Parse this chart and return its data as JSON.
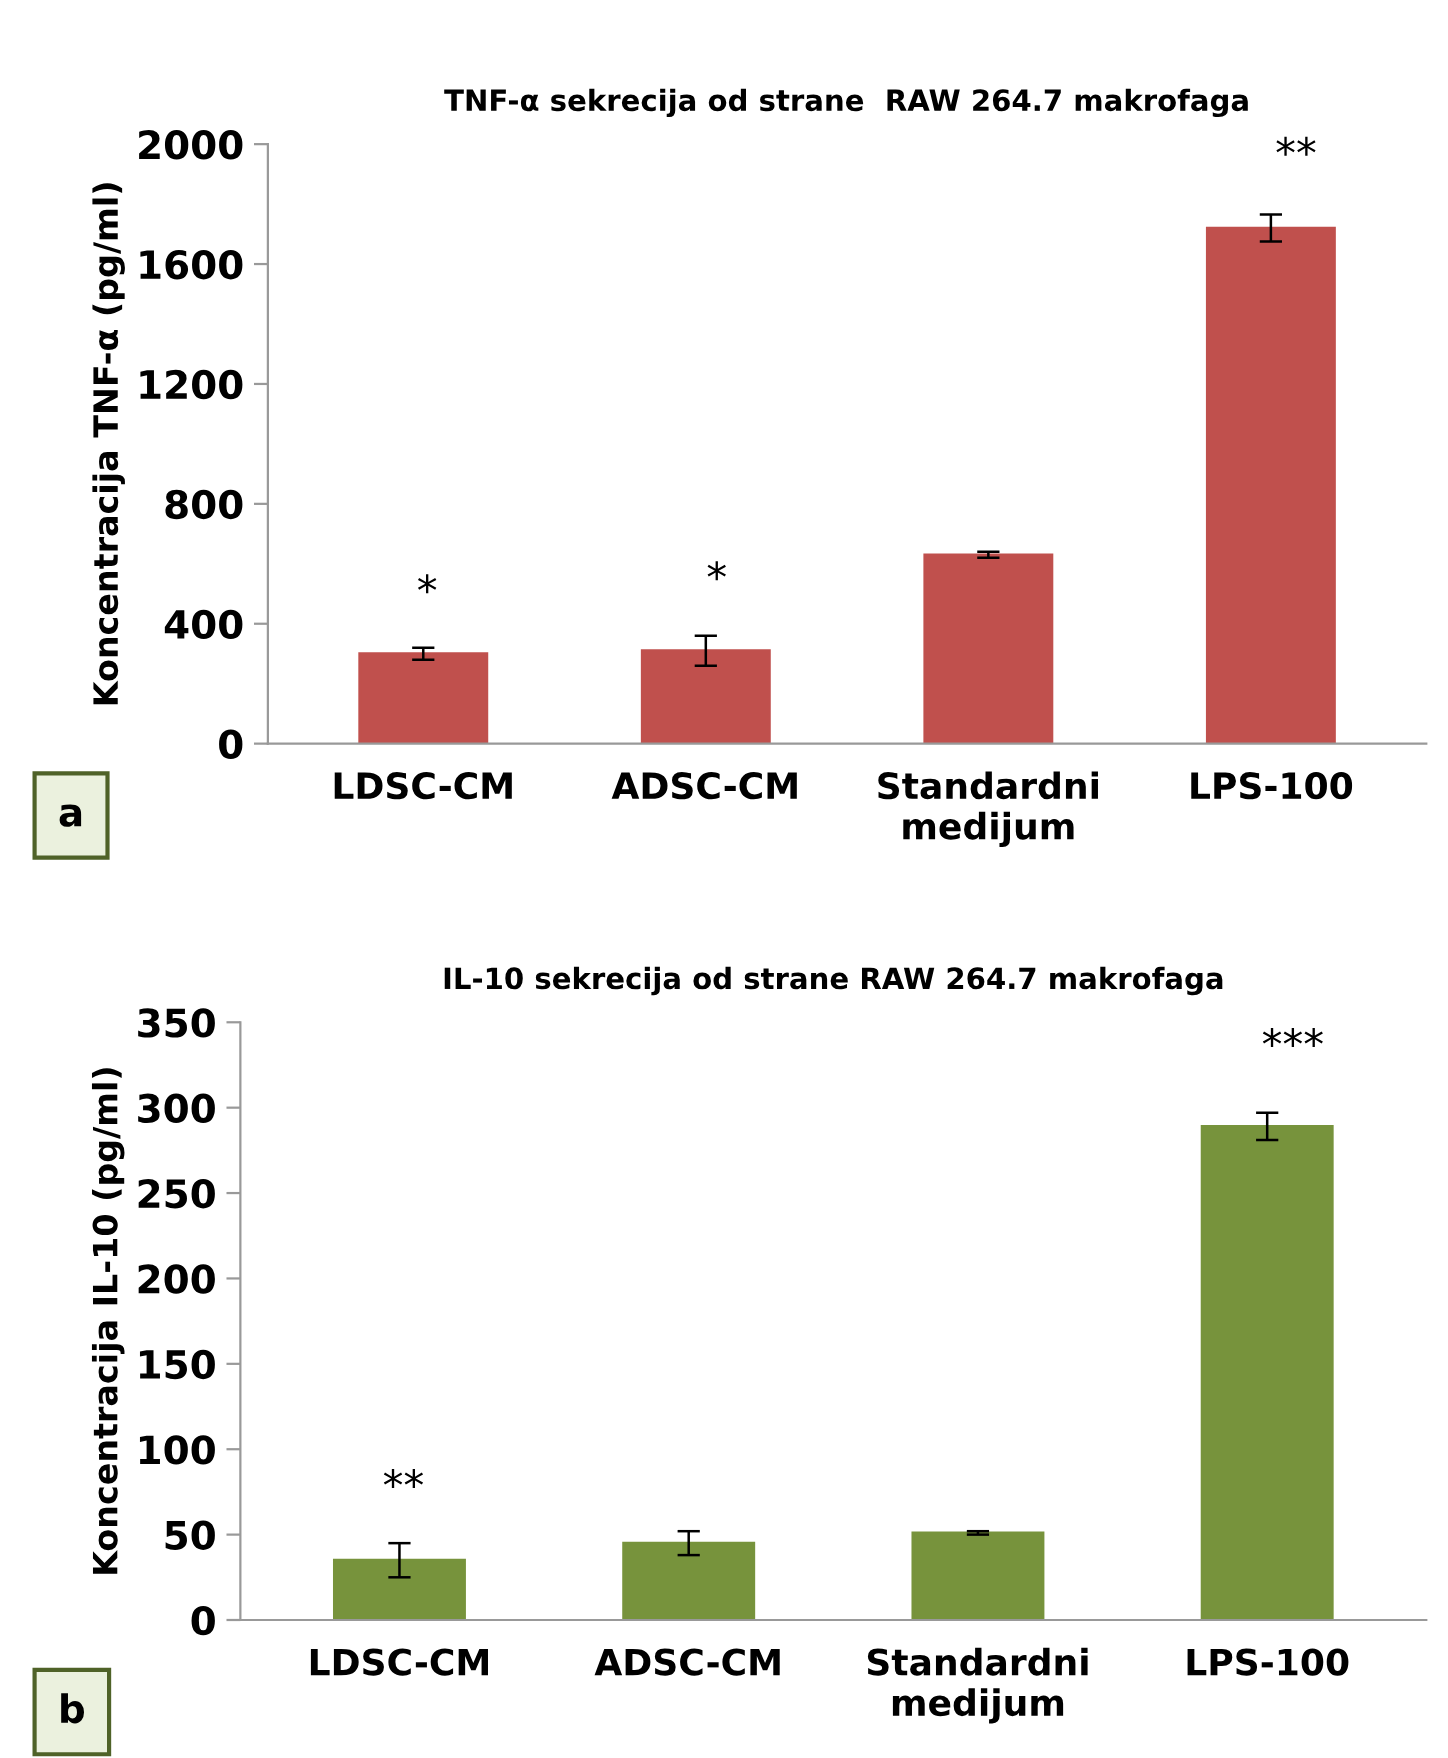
{
  "chart_data": [
    {
      "type": "bar",
      "title": "TNF-α sekrecija od strane  RAW 264.7 makrofaga",
      "ylabel": "Koncentracija TNF-α (pg/ml)",
      "categories": [
        "LDSC-CM",
        "ADSC-CM",
        "Standardni\nmedijum",
        "LPS-100"
      ],
      "series": [
        {
          "color": "#c0504d",
          "values": [
            300,
            310,
            630,
            1720
          ],
          "errors": [
            20,
            50,
            10,
            45
          ]
        }
      ],
      "ylim": [
        0,
        2000
      ],
      "yticks": [
        0,
        400,
        800,
        1200,
        1600,
        2000
      ],
      "grid": false,
      "legend": false,
      "annotations": [
        "*",
        "*",
        "**",
        "a"
      ]
    },
    {
      "type": "bar",
      "title": "IL-10 sekrecija od strane RAW 264.7 makrofaga",
      "ylabel": "Koncentracija IL-10 (pg/ml)",
      "categories": [
        "LDSC-CM",
        "ADSC-CM",
        "Standardni\nmedijum",
        "LPS-100"
      ],
      "series": [
        {
          "color": "#77933c",
          "values": [
            35,
            45,
            51,
            289
          ],
          "errors": [
            10,
            7,
            1,
            8
          ]
        }
      ],
      "ylim": [
        0,
        350
      ],
      "yticks": [
        0,
        50,
        100,
        150,
        200,
        250,
        300,
        350
      ],
      "grid": false,
      "legend": false,
      "annotations": [
        "**",
        "***",
        "b"
      ]
    }
  ]
}
